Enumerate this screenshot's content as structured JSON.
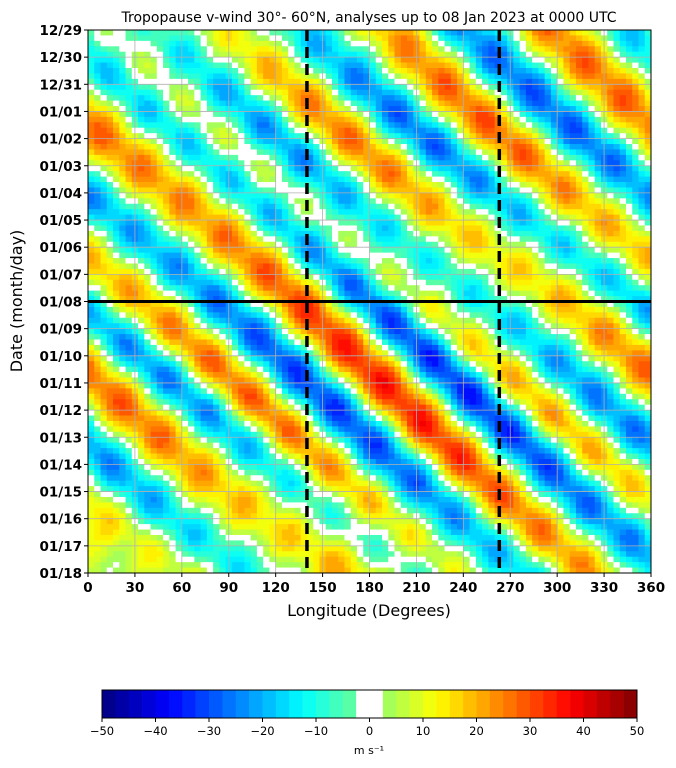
{
  "chart_data": {
    "type": "heatmap",
    "title": "Tropopause v-wind 30°- 60°N, analyses up to 08 Jan 2023 at 0000 UTC",
    "xlabel": "Longitude (Degrees)",
    "ylabel": "Date (month/day)",
    "x_ticks": [
      0,
      30,
      60,
      90,
      120,
      150,
      180,
      210,
      240,
      270,
      300,
      330,
      360
    ],
    "x_tick_labels": [
      "0",
      "30",
      "60",
      "90",
      "120",
      "150",
      "180",
      "210",
      "240",
      "270",
      "300",
      "330",
      "360"
    ],
    "xlim": [
      0,
      360
    ],
    "y_tick_labels": [
      "12/29",
      "12/30",
      "12/31",
      "01/01",
      "01/02",
      "01/03",
      "01/04",
      "01/05",
      "01/06",
      "01/07",
      "01/08",
      "01/09",
      "01/10",
      "01/11",
      "01/12",
      "01/13",
      "01/14",
      "01/15",
      "01/16",
      "01/17",
      "01/18"
    ],
    "analysis_date_line": "01/08",
    "dashed_longitudes": [
      140,
      263
    ],
    "colorbar": {
      "min": -50,
      "max": 50,
      "ticks": [
        -50,
        -40,
        -30,
        -20,
        -10,
        0,
        10,
        20,
        30,
        40,
        50
      ],
      "tick_labels": [
        "−50",
        "−40",
        "−30",
        "−20",
        "−10",
        "0",
        "10",
        "20",
        "30",
        "40",
        "50"
      ],
      "unit": "m s⁻¹",
      "blank_interval": [
        -2.5,
        2.5
      ],
      "colormap": "jet"
    },
    "wave_bands": [
      {
        "lon_start": 80,
        "slope": 22,
        "amp": 22,
        "width": 30
      },
      {
        "lon_start": 130,
        "slope": 22,
        "amp": -24,
        "width": 26
      },
      {
        "lon_start": 190,
        "slope": 20,
        "amp": 26,
        "width": 28
      },
      {
        "lon_start": 240,
        "slope": 20,
        "amp": -28,
        "width": 26
      },
      {
        "lon_start": 300,
        "slope": 19,
        "amp": 30,
        "width": 28
      },
      {
        "lon_start": 350,
        "slope": 19,
        "amp": -30,
        "width": 24
      },
      {
        "lon_start": 40,
        "slope": 21,
        "amp": -20,
        "width": 26
      },
      {
        "lon_start": 0,
        "slope": 21,
        "amp": 18,
        "width": 24
      }
    ]
  }
}
